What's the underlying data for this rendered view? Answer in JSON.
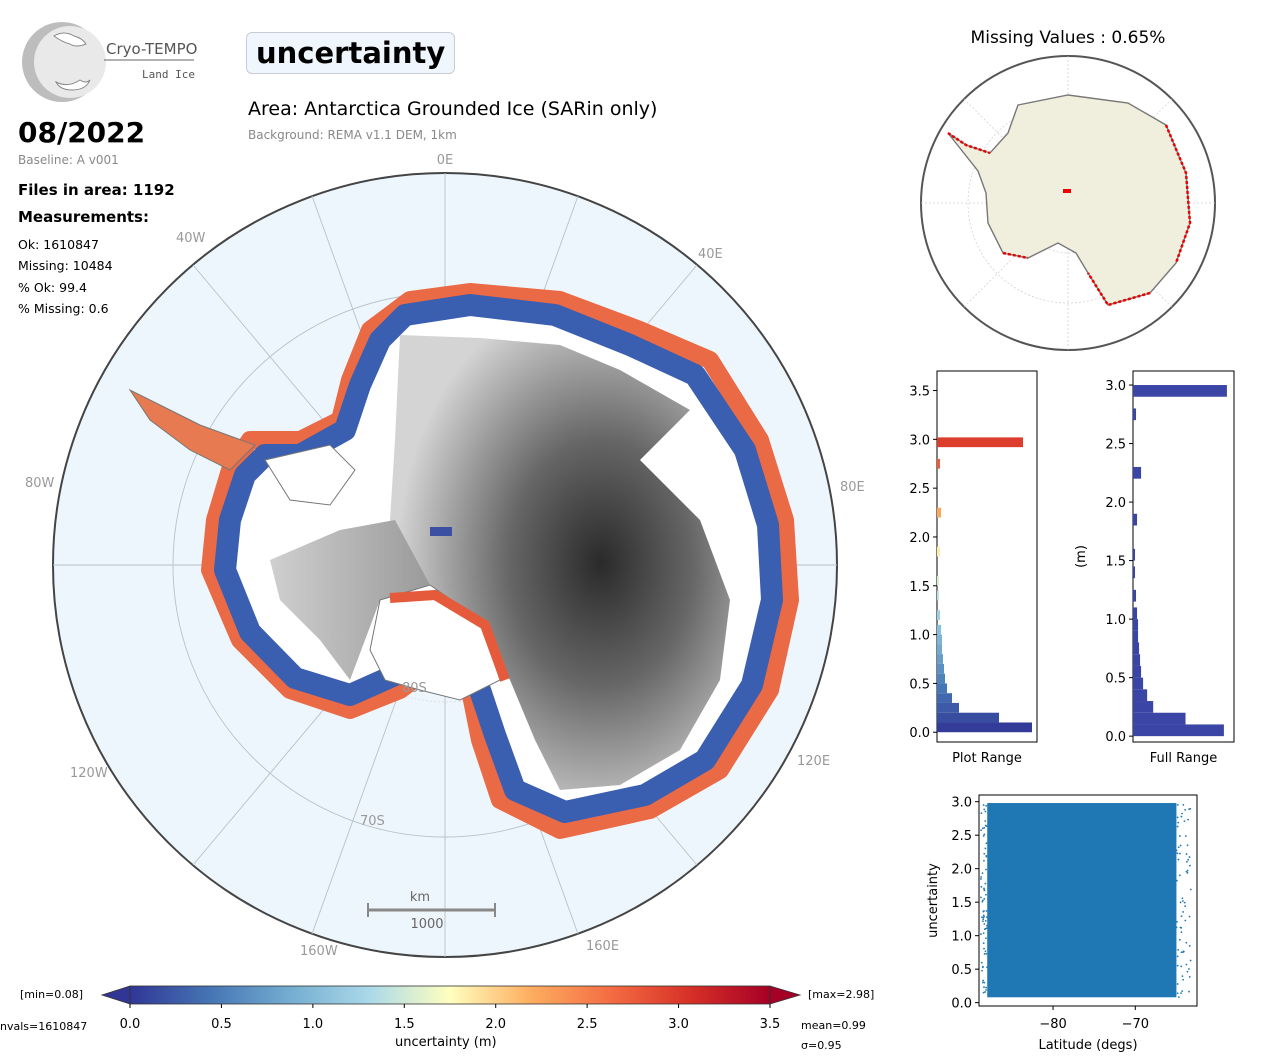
{
  "logo": {
    "name": "Cryo-TEMPO",
    "subtitle": "Land Ice"
  },
  "parameter": "uncertainty",
  "area": "Area: Antarctica Grounded Ice (SARin only)",
  "background": "Background: REMA v1.1 DEM, 1km",
  "date": "08/2022",
  "baseline": "Baseline: A v001",
  "files": "Files in area: 1192",
  "measurements_title": "Measurements:",
  "stats": [
    "Ok: 1610847",
    "Missing: 10484",
    "% Ok: 99.4",
    "% Missing: 0.6"
  ],
  "map": {
    "lon_labels": [
      "0E",
      "40E",
      "80E",
      "120E",
      "160E",
      "160W",
      "120W",
      "80W",
      "40W"
    ],
    "lat_labels": [
      "80S",
      "70S"
    ],
    "scalebar": {
      "unit": "km",
      "value": "1000"
    }
  },
  "missing_values_title": "Missing Values : 0.65%",
  "colorbar": {
    "ticks": [
      "0.0",
      "0.5",
      "1.0",
      "1.5",
      "2.0",
      "2.5",
      "3.0",
      "3.5"
    ],
    "label": "uncertainty (m)",
    "min_label": "[min=0.08]",
    "max_label": "[max=2.98]",
    "nvals_label": "nvals=1610847",
    "mean_label": "mean=0.99",
    "sigma_label": "σ=0.95",
    "colors": [
      "#313695",
      "#4575b4",
      "#74add1",
      "#abd9e9",
      "#ffffbf",
      "#fdae61",
      "#f46d43",
      "#d73027",
      "#a50026"
    ]
  },
  "chart_data": [
    {
      "type": "bar",
      "orientation": "horizontal",
      "xlabel": "Plot Range",
      "ylabel": "",
      "yticks": [
        "0.0",
        "0.5",
        "1.0",
        "1.5",
        "2.0",
        "2.5",
        "3.0",
        "3.5"
      ],
      "ylim": [
        -0.1,
        3.7
      ],
      "bins": [
        0.05,
        0.15,
        0.25,
        0.35,
        0.45,
        0.55,
        0.65,
        0.75,
        0.85,
        0.95,
        1.05,
        1.2,
        1.4,
        1.55,
        1.85,
        2.25,
        2.75,
        2.97
      ],
      "values": [
        0.95,
        0.62,
        0.22,
        0.15,
        0.1,
        0.08,
        0.07,
        0.06,
        0.05,
        0.05,
        0.04,
        0.03,
        0.02,
        0.02,
        0.03,
        0.04,
        0.03,
        0.86
      ]
    },
    {
      "type": "bar",
      "orientation": "horizontal",
      "xlabel": "Full Range",
      "ylabel": "(m)",
      "yticks": [
        "0.0",
        "0.5",
        "1.0",
        "1.5",
        "2.0",
        "2.5",
        "3.0"
      ],
      "ylim": [
        -0.05,
        3.12
      ],
      "bins": [
        0.05,
        0.15,
        0.25,
        0.35,
        0.45,
        0.55,
        0.65,
        0.75,
        0.85,
        0.95,
        1.05,
        1.2,
        1.4,
        1.55,
        1.85,
        2.25,
        2.75,
        2.95
      ],
      "values": [
        0.9,
        0.52,
        0.2,
        0.14,
        0.1,
        0.08,
        0.07,
        0.06,
        0.05,
        0.05,
        0.04,
        0.03,
        0.02,
        0.02,
        0.04,
        0.08,
        0.03,
        0.93
      ]
    },
    {
      "type": "scatter",
      "xlabel": "Latitude (degs)",
      "ylabel": "uncertainty",
      "xticks": [
        "−80",
        "−70"
      ],
      "yticks": [
        "0.0",
        "0.5",
        "1.0",
        "1.5",
        "2.0",
        "2.5",
        "3.0"
      ],
      "xlim": [
        -89,
        -62.5
      ],
      "ylim": [
        -0.05,
        3.1
      ],
      "x_range": [
        -88,
        -65
      ],
      "y_range": [
        0.08,
        2.98
      ],
      "color": "#1f77b4"
    }
  ]
}
